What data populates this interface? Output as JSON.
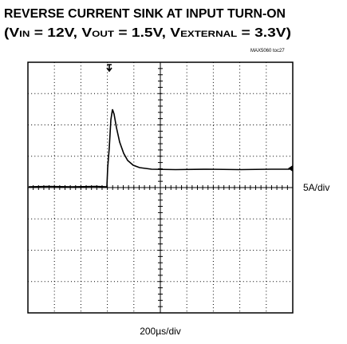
{
  "chart_data": {
    "type": "oscilloscope",
    "title": "REVERSE CURRENT SINK AT INPUT TURN-ON",
    "subtitle_parts": [
      "(V",
      "IN",
      " = 12V, V",
      "OUT",
      " = 1.5V, V",
      "EXTERNAL",
      " = 3.3V)"
    ],
    "annotation": "MAX5060 toc27",
    "y_scale_label": "5A/div",
    "x_scale_label": "200µs/div"
  }
}
